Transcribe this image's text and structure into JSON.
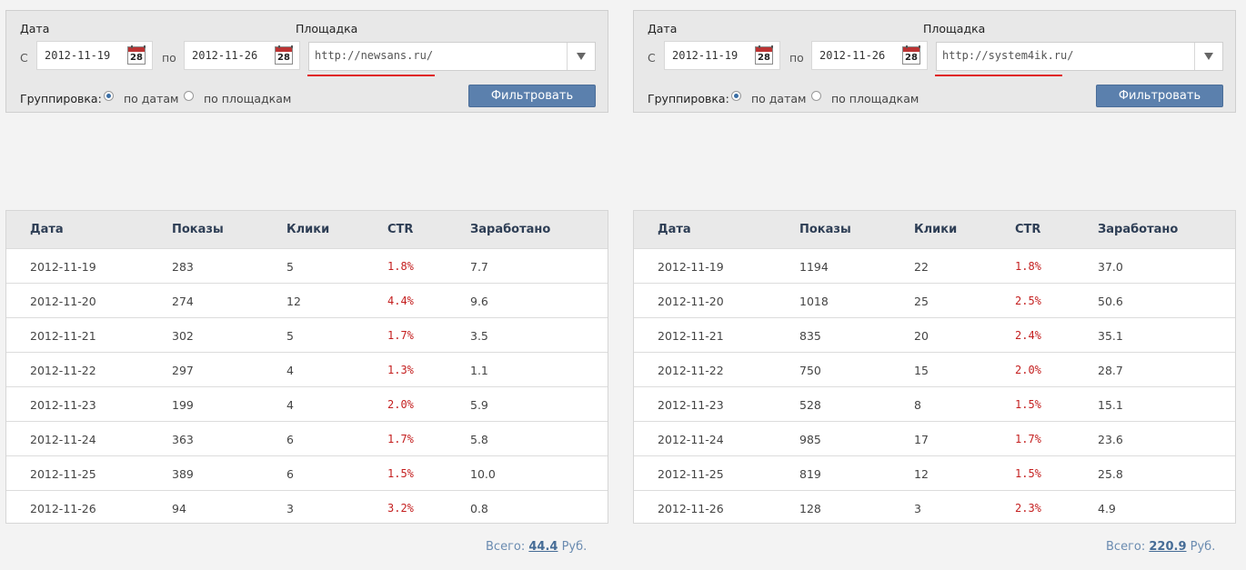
{
  "panels": [
    {
      "labels": {
        "date": "Дата",
        "site": "Площадка",
        "from": "С",
        "to": "по",
        "grouping": "Группировка:"
      },
      "date_from": "2012-11-19",
      "date_to": "2012-11-26",
      "calendar_day": "28",
      "site_value": "http://newsans.ru/",
      "grouping_options": [
        "по датам",
        "по площадкам"
      ],
      "grouping_selected": "по датам",
      "filter_button": "Фильтровать",
      "columns": [
        "Дата",
        "Показы",
        "Клики",
        "CTR",
        "Заработано"
      ],
      "rows": [
        [
          "2012-11-19",
          "283",
          "5",
          "1.8%",
          "7.7"
        ],
        [
          "2012-11-20",
          "274",
          "12",
          "4.4%",
          "9.6"
        ],
        [
          "2012-11-21",
          "302",
          "5",
          "1.7%",
          "3.5"
        ],
        [
          "2012-11-22",
          "297",
          "4",
          "1.3%",
          "1.1"
        ],
        [
          "2012-11-23",
          "199",
          "4",
          "2.0%",
          "5.9"
        ],
        [
          "2012-11-24",
          "363",
          "6",
          "1.7%",
          "5.8"
        ],
        [
          "2012-11-25",
          "389",
          "6",
          "1.5%",
          "10.0"
        ],
        [
          "2012-11-26",
          "94",
          "3",
          "3.2%",
          "0.8"
        ]
      ],
      "total": {
        "label": "Всего:",
        "value": "44.4",
        "unit": "Руб."
      }
    },
    {
      "labels": {
        "date": "Дата",
        "site": "Площадка",
        "from": "С",
        "to": "по",
        "grouping": "Группировка:"
      },
      "date_from": "2012-11-19",
      "date_to": "2012-11-26",
      "calendar_day": "28",
      "site_value": "http://system4ik.ru/",
      "grouping_options": [
        "по датам",
        "по площадкам"
      ],
      "grouping_selected": "по датам",
      "filter_button": "Фильтровать",
      "columns": [
        "Дата",
        "Показы",
        "Клики",
        "CTR",
        "Заработано"
      ],
      "rows": [
        [
          "2012-11-19",
          "1194",
          "22",
          "1.8%",
          "37.0"
        ],
        [
          "2012-11-20",
          "1018",
          "25",
          "2.5%",
          "50.6"
        ],
        [
          "2012-11-21",
          "835",
          "20",
          "2.4%",
          "35.1"
        ],
        [
          "2012-11-22",
          "750",
          "15",
          "2.0%",
          "28.7"
        ],
        [
          "2012-11-23",
          "528",
          "8",
          "1.5%",
          "15.1"
        ],
        [
          "2012-11-24",
          "985",
          "17",
          "1.7%",
          "23.6"
        ],
        [
          "2012-11-25",
          "819",
          "12",
          "1.5%",
          "25.8"
        ],
        [
          "2012-11-26",
          "128",
          "3",
          "2.3%",
          "4.9"
        ]
      ],
      "total": {
        "label": "Всего:",
        "value": "220.9",
        "unit": "Руб."
      }
    }
  ],
  "colors": {
    "ctr": "#c41f1f",
    "button": "#5b80ad",
    "underline": "#e02020",
    "total_link": "#466c96"
  }
}
